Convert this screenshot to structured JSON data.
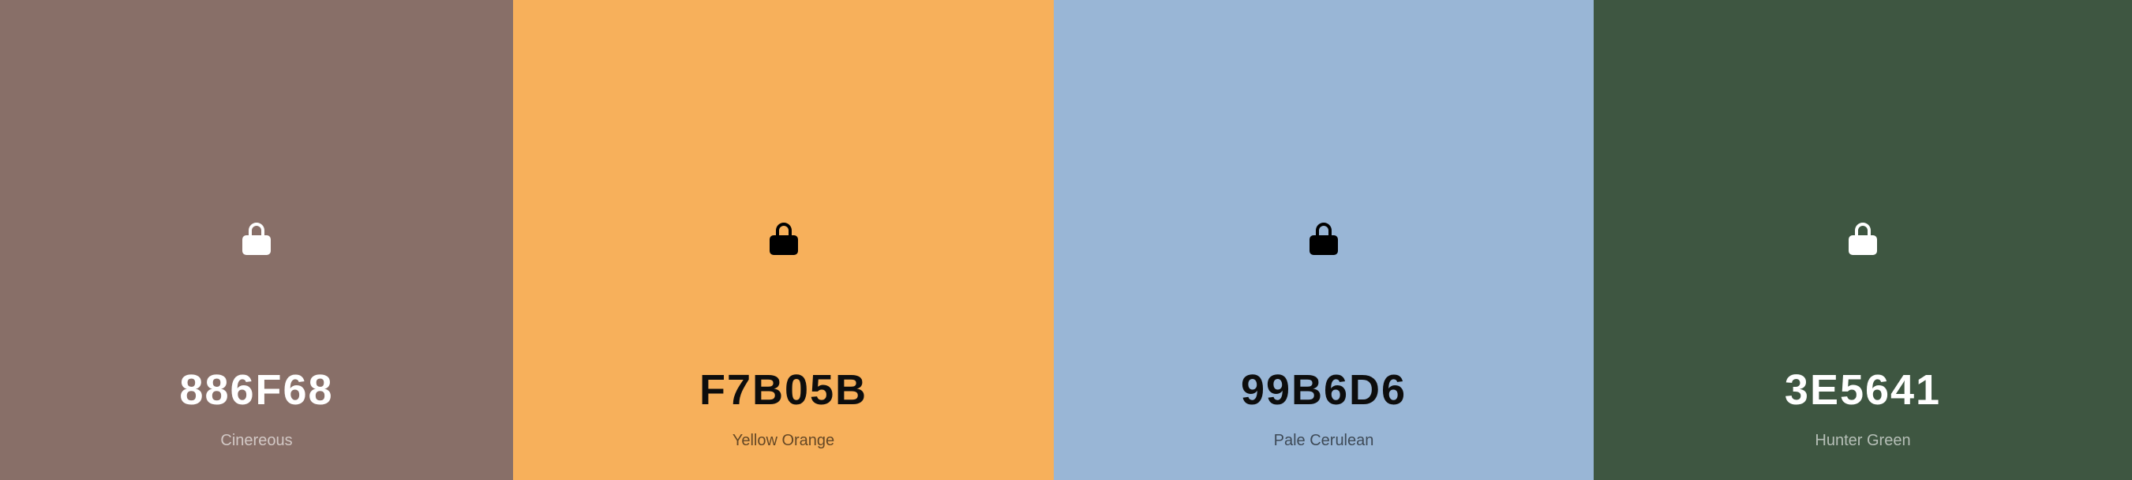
{
  "palette": {
    "swatches": [
      {
        "hex": "886F68",
        "name": "Cinereous",
        "color": "#886F68",
        "text_tone": "light",
        "icon": "lock-icon"
      },
      {
        "hex": "F7B05B",
        "name": "Yellow Orange",
        "color": "#F7B05B",
        "text_tone": "dark",
        "icon": "lock-icon"
      },
      {
        "hex": "99B6D6",
        "name": "Pale Cerulean",
        "color": "#99B6D6",
        "text_tone": "dark",
        "icon": "lock-icon"
      },
      {
        "hex": "3E5641",
        "name": "Hunter Green",
        "color": "#3E5641",
        "text_tone": "light",
        "icon": "lock-icon"
      }
    ]
  }
}
